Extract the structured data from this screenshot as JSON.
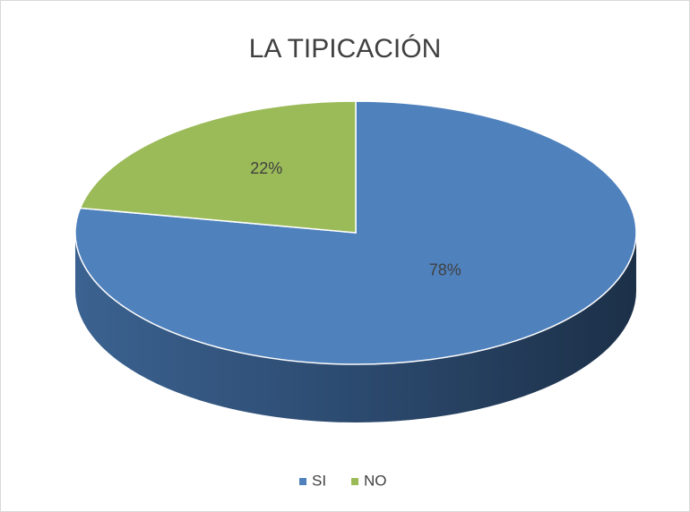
{
  "chart_data": {
    "type": "pie",
    "title": "LA TIPICACIÓN",
    "categories": [
      "SI",
      "NO"
    ],
    "values": [
      78,
      22
    ],
    "value_labels": [
      "78%",
      "22%"
    ],
    "colors": [
      "#4f81bd",
      "#9bbb59"
    ],
    "legend": "bottom"
  }
}
